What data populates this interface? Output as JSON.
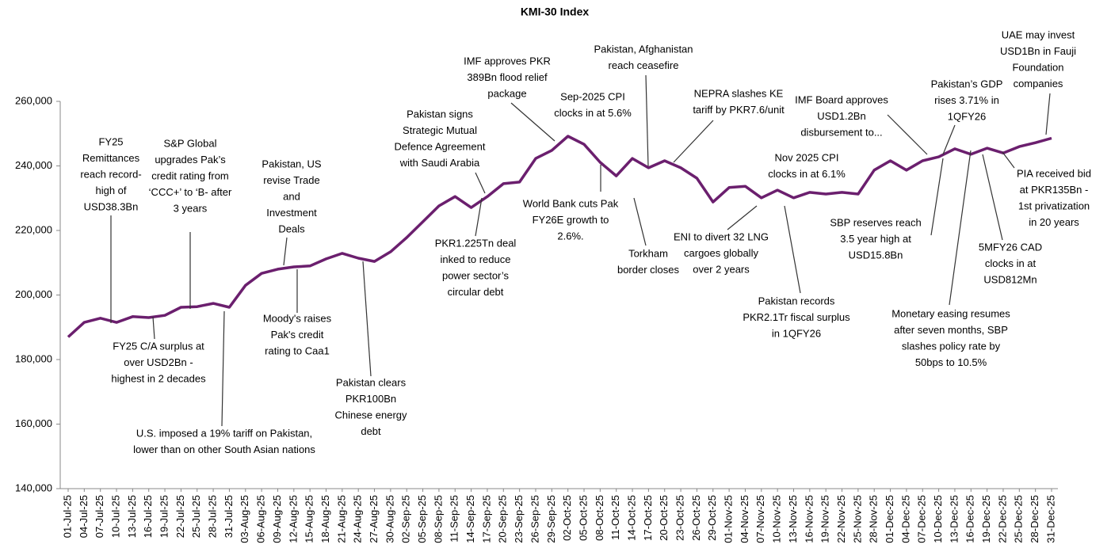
{
  "chart_data": {
    "type": "line",
    "title": "KMI-30 Index",
    "categories": [
      "01-Jul-25",
      "04-Jul-25",
      "07-Jul-25",
      "10-Jul-25",
      "13-Jul-25",
      "16-Jul-25",
      "19-Jul-25",
      "22-Jul-25",
      "25-Jul-25",
      "28-Jul-25",
      "31-Jul-25",
      "03-Aug-25",
      "06-Aug-25",
      "09-Aug-25",
      "12-Aug-25",
      "15-Aug-25",
      "18-Aug-25",
      "21-Aug-25",
      "24-Aug-25",
      "27-Aug-25",
      "30-Aug-25",
      "02-Sep-25",
      "05-Sep-25",
      "08-Sep-25",
      "11-Sep-25",
      "14-Sep-25",
      "17-Sep-25",
      "20-Sep-25",
      "23-Sep-25",
      "26-Sep-25",
      "29-Sep-25",
      "02-Oct-25",
      "05-Oct-25",
      "08-Oct-25",
      "11-Oct-25",
      "14-Oct-25",
      "17-Oct-25",
      "20-Oct-25",
      "23-Oct-25",
      "26-Oct-25",
      "29-Oct-25",
      "01-Nov-25",
      "04-Nov-25",
      "07-Nov-25",
      "10-Nov-25",
      "13-Nov-25",
      "16-Nov-25",
      "19-Nov-25",
      "22-Nov-25",
      "25-Nov-25",
      "28-Nov-25",
      "01-Dec-25",
      "04-Dec-25",
      "07-Dec-25",
      "10-Dec-25",
      "13-Dec-25",
      "16-Dec-25",
      "19-Dec-25",
      "22-Dec-25",
      "25-Dec-25",
      "28-Dec-25",
      "31-Dec-25"
    ],
    "values": [
      187000,
      191500,
      192800,
      191500,
      193300,
      193000,
      193700,
      196200,
      196400,
      197400,
      196200,
      203000,
      206700,
      208000,
      208700,
      209000,
      211200,
      212900,
      211400,
      210400,
      213400,
      217800,
      222700,
      227600,
      230500,
      227100,
      230500,
      234500,
      235000,
      242300,
      244800,
      249200,
      246700,
      241100,
      236900,
      242300,
      239400,
      241600,
      239400,
      236200,
      228800,
      233300,
      233700,
      230100,
      232500,
      230100,
      231800,
      231300,
      231800,
      231300,
      238700,
      241600,
      238700,
      241600,
      242800,
      245300,
      243600,
      245500,
      244000,
      246000,
      247200,
      248600
    ],
    "color": "#6b1f6e",
    "ylim": [
      140000,
      260000
    ],
    "yticks": [
      {
        "value": 140000,
        "label": "140,000"
      },
      {
        "value": 160000,
        "label": "160,000"
      },
      {
        "value": 180000,
        "label": "180,000"
      },
      {
        "value": 200000,
        "label": "200,000"
      },
      {
        "value": 220000,
        "label": "220,000"
      },
      {
        "value": 240000,
        "label": "240,000"
      },
      {
        "value": 260000,
        "label": "260,000"
      }
    ],
    "annotations": [
      [
        "FY25",
        "Remittances",
        "reach record-",
        "high of",
        "USD38.3Bn"
      ],
      [
        "FY25 C/A surplus at",
        "over USD2Bn -",
        "highest in 2 decades"
      ],
      [
        "S&P Global",
        "upgrades Pak’s",
        "credit rating from",
        "‘CCC+’ to ‘B- after",
        "3 years"
      ],
      [
        "U.S. imposed a 19% tariff on Pakistan,",
        "lower than on other South Asian nations"
      ],
      [
        "Pakistan, US",
        "revise Trade",
        "and",
        "Investment",
        "Deals"
      ],
      [
        "Moody's raises",
        "Pak's credit",
        "rating to Caa1"
      ],
      [
        "Pakistan clears",
        "PKR100Bn",
        "Chinese energy",
        "debt"
      ],
      [
        "PKR1.225Tn deal",
        "inked to reduce",
        "power sector’s",
        "circular debt"
      ],
      [
        "Pakistan signs",
        "Strategic Mutual",
        "Defence  Agreement",
        "with Saudi Arabia"
      ],
      [
        "IMF approves PKR",
        "389Bn flood relief",
        "package"
      ],
      [
        "Sep-2025 CPI",
        "clocks in at 5.6%"
      ],
      [
        "World Bank cuts Pak",
        "FY26E growth to",
        "2.6%."
      ],
      [
        "Pakistan, Afghanistan",
        "reach ceasefire"
      ],
      [
        "Torkham",
        "border closes"
      ],
      [
        "NEPRA  slashes KE",
        "tariff by PKR7.6/unit"
      ],
      [
        "ENI to divert 32 LNG",
        "cargoes globally",
        "over 2 years"
      ],
      [
        "Nov 2025 CPI",
        "clocks in at 6.1%"
      ],
      [
        "Pakistan records",
        "PKR2.1Tr fiscal surplus",
        "in 1QFY26"
      ],
      [
        "IMF Board approves",
        "USD1.2Bn",
        "disbursement to..."
      ],
      [
        "SBP reserves reach",
        "3.5 year high at",
        "USD15.8Bn"
      ],
      [
        "Pakistan’s GDP",
        "rises 3.71% in",
        "1QFY26"
      ],
      [
        "UAE may invest",
        "USD1Bn  in Fauji",
        "Foundation",
        "companies"
      ],
      [
        "PIA received bid",
        "at PKR135Bn -",
        "1st privatization",
        "in 20 years"
      ],
      [
        "5MFY26 CAD",
        "clocks in at",
        "USD812Mn"
      ],
      [
        "Monetary easing resumes",
        "after seven months, SBP",
        "slashes policy rate by",
        "50bps to 10.5%"
      ]
    ]
  }
}
